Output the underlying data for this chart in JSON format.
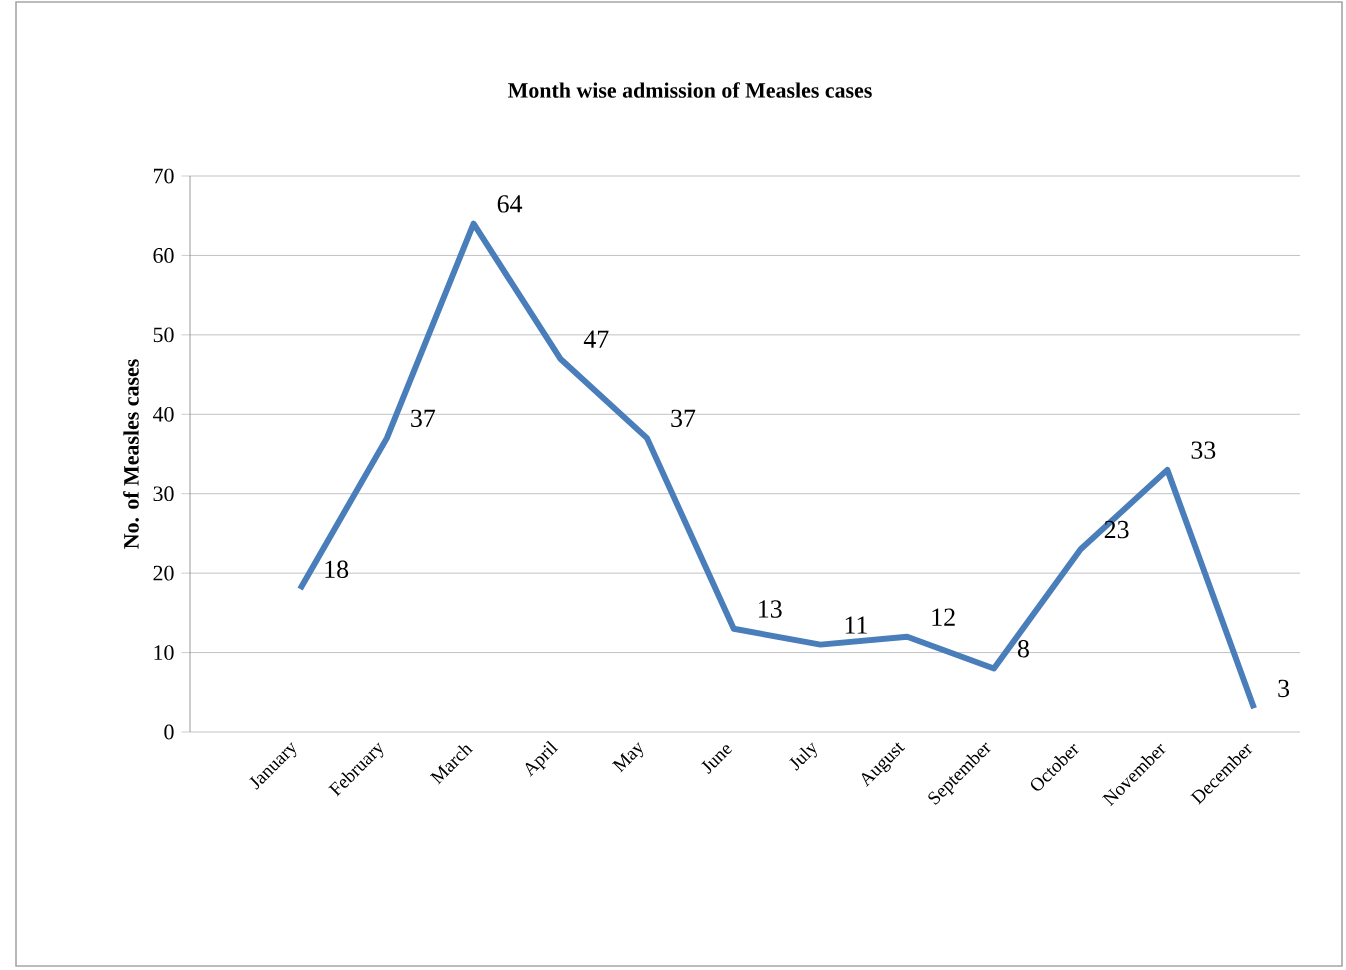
{
  "chart_data": {
    "type": "line",
    "title": "Month wise admission of Measles cases",
    "ylabel": "No. of Measles cases",
    "categories": [
      "January",
      "February",
      "March",
      "April",
      "May",
      "June",
      "July",
      "August",
      "September",
      "October",
      "November",
      "December"
    ],
    "series": [
      {
        "color": "#4a7ebb",
        "values": [
          18,
          37,
          64,
          47,
          37,
          13,
          11,
          12,
          8,
          23,
          33,
          3
        ]
      }
    ],
    "ylim": [
      0,
      70
    ],
    "yticks": [
      0,
      10,
      20,
      30,
      40,
      50,
      60,
      70
    ],
    "grid": "y",
    "legend": false,
    "marker": "none",
    "line_style": "solid",
    "data_labels": true
  }
}
